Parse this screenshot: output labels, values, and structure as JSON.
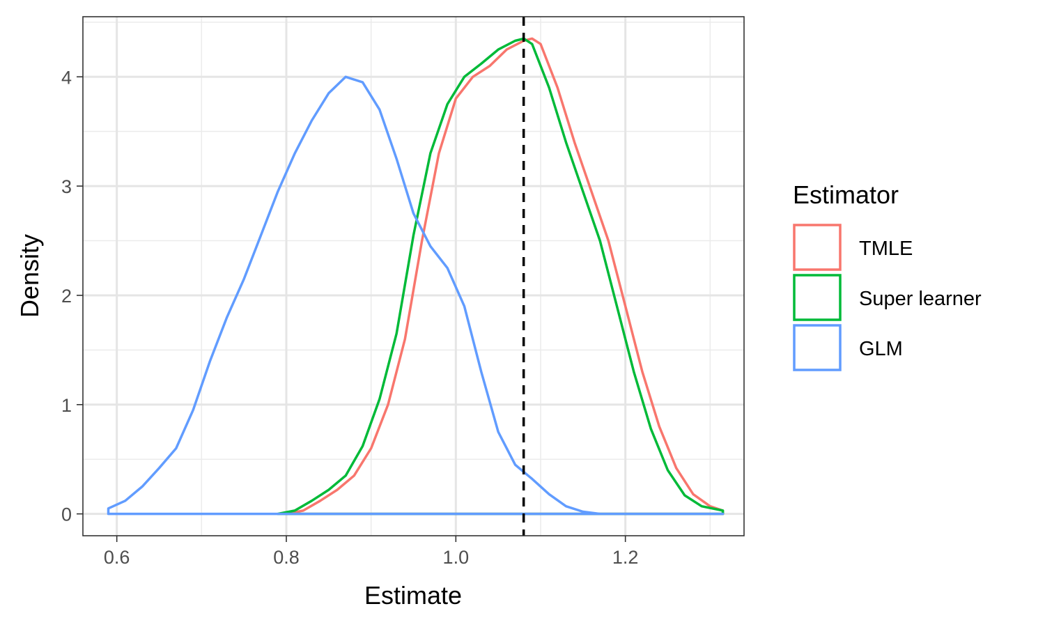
{
  "chart_data": {
    "type": "line",
    "subtype": "density",
    "xlabel": "Estimate",
    "ylabel": "Density",
    "xlim": [
      0.56,
      1.34
    ],
    "ylim": [
      -0.2,
      4.55
    ],
    "x_ticks": [
      0.6,
      0.8,
      1.0,
      1.2
    ],
    "x_tick_labels": [
      "0.6",
      "0.8",
      "1.0",
      "1.2"
    ],
    "y_ticks": [
      0,
      1,
      2,
      3,
      4
    ],
    "y_tick_labels": [
      "0",
      "1",
      "2",
      "3",
      "4"
    ],
    "grid": true,
    "reference_line": {
      "x": 1.08,
      "style": "dashed",
      "color": "#000000"
    },
    "legend": {
      "title": "Estimator",
      "position": "right",
      "entries": [
        {
          "label": "TMLE",
          "color": "#F8766D"
        },
        {
          "label": "Super learner",
          "color": "#00BA38"
        },
        {
          "label": "GLM",
          "color": "#619CFF"
        }
      ]
    },
    "series": [
      {
        "name": "TMLE",
        "color": "#F8766D",
        "x": [
          0.8,
          0.82,
          0.84,
          0.86,
          0.88,
          0.9,
          0.92,
          0.94,
          0.96,
          0.98,
          1.0,
          1.02,
          1.04,
          1.06,
          1.08,
          1.09,
          1.1,
          1.12,
          1.14,
          1.16,
          1.18,
          1.2,
          1.22,
          1.24,
          1.26,
          1.28,
          1.3,
          1.315
        ],
        "y": [
          0.0,
          0.03,
          0.12,
          0.22,
          0.35,
          0.6,
          1.0,
          1.6,
          2.5,
          3.3,
          3.8,
          4.0,
          4.1,
          4.25,
          4.33,
          4.35,
          4.3,
          3.9,
          3.4,
          2.95,
          2.5,
          1.9,
          1.3,
          0.8,
          0.42,
          0.18,
          0.07,
          0.03
        ]
      },
      {
        "name": "Super learner",
        "color": "#00BA38",
        "x": [
          0.79,
          0.81,
          0.83,
          0.85,
          0.87,
          0.89,
          0.91,
          0.93,
          0.95,
          0.97,
          0.99,
          1.01,
          1.03,
          1.05,
          1.07,
          1.08,
          1.09,
          1.11,
          1.13,
          1.15,
          1.17,
          1.19,
          1.21,
          1.23,
          1.25,
          1.27,
          1.29,
          1.315
        ],
        "y": [
          0.0,
          0.03,
          0.12,
          0.22,
          0.35,
          0.62,
          1.05,
          1.65,
          2.55,
          3.3,
          3.75,
          4.0,
          4.12,
          4.25,
          4.33,
          4.35,
          4.3,
          3.9,
          3.4,
          2.95,
          2.5,
          1.9,
          1.3,
          0.78,
          0.4,
          0.17,
          0.07,
          0.03
        ]
      },
      {
        "name": "GLM",
        "color": "#619CFF",
        "x": [
          0.59,
          0.61,
          0.63,
          0.65,
          0.67,
          0.69,
          0.71,
          0.73,
          0.75,
          0.77,
          0.79,
          0.81,
          0.83,
          0.85,
          0.87,
          0.89,
          0.91,
          0.93,
          0.95,
          0.97,
          0.99,
          1.01,
          1.03,
          1.05,
          1.07,
          1.09,
          1.11,
          1.13,
          1.15,
          1.17,
          1.19,
          1.22,
          1.26,
          1.3,
          1.315
        ],
        "y": [
          0.05,
          0.12,
          0.25,
          0.42,
          0.6,
          0.95,
          1.4,
          1.8,
          2.15,
          2.55,
          2.95,
          3.3,
          3.6,
          3.85,
          4.0,
          3.95,
          3.7,
          3.25,
          2.75,
          2.45,
          2.25,
          1.9,
          1.3,
          0.75,
          0.45,
          0.32,
          0.18,
          0.07,
          0.02,
          0.0,
          0.0,
          0.0,
          0.0,
          0.0,
          0.0
        ]
      }
    ]
  }
}
